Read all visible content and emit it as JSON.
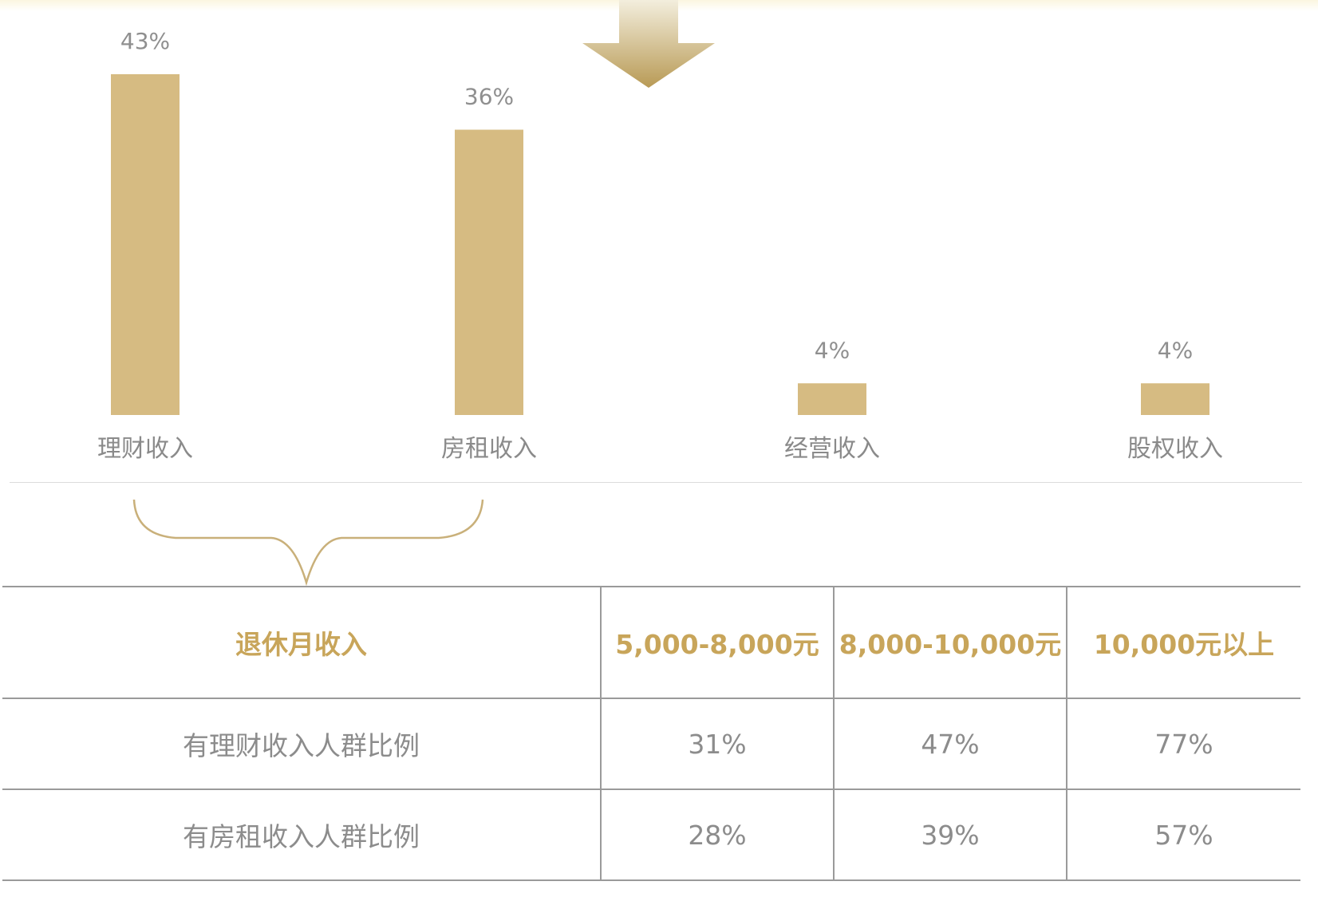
{
  "chart_data": {
    "type": "bar",
    "categories": [
      "理财收入",
      "房租收入",
      "经营收入",
      "股权收入"
    ],
    "values": [
      43,
      36,
      4,
      4
    ],
    "value_labels": [
      "43%",
      "36%",
      "4%",
      "4%"
    ],
    "unit": "%",
    "title": "",
    "xlabel": "",
    "ylabel": "",
    "ylim": [
      0,
      43
    ],
    "grid": false,
    "legend": "none",
    "bar_color": "#d6bb82"
  },
  "table": {
    "header": [
      "退休月收入",
      "5,000-8,000元",
      "8,000-10,000元",
      "10,000元以上"
    ],
    "rows": [
      {
        "label": "有理财收入人群比例",
        "values": [
          "31%",
          "47%",
          "77%"
        ]
      },
      {
        "label": "有房租收入人群比例",
        "values": [
          "28%",
          "39%",
          "57%"
        ]
      }
    ]
  },
  "colors": {
    "bar": "#d6bb82",
    "header_text": "#c8a55a",
    "arrow_top": "#f3eedd",
    "arrow_bottom": "#b89a55",
    "brace": "#c9b07a"
  }
}
